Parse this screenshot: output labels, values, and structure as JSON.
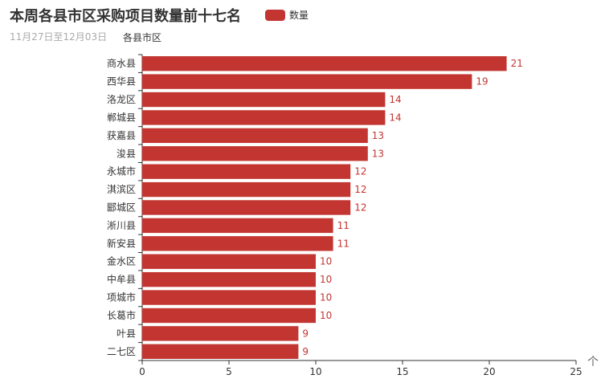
{
  "chart_data": {
    "type": "bar",
    "orientation": "horizontal",
    "title": "本周各县市区采购项目数量前十七名",
    "subtitle": "11月27日至12月03日",
    "ylabel": "各县市区",
    "xlabel": "",
    "legend": [
      "数量"
    ],
    "legend_position": "top",
    "color": "#c23531",
    "categories": [
      "二七区",
      "叶县",
      "长葛市",
      "项城市",
      "中牟县",
      "金水区",
      "新安县",
      "淅川县",
      "郾城区",
      "淇滨区",
      "永城市",
      "浚县",
      "获嘉县",
      "郸城县",
      "洛龙区",
      "西华县",
      "商水县"
    ],
    "series": [
      {
        "name": "数量",
        "values": [
          9,
          9,
          10,
          10,
          10,
          10,
          11,
          11,
          12,
          12,
          12,
          13,
          13,
          14,
          14,
          19,
          21
        ]
      }
    ],
    "xlim": [
      0,
      25
    ],
    "x_ticks": [
      "0",
      "5",
      "10",
      "15",
      "20",
      "25"
    ],
    "grid": false,
    "data_labels": true
  },
  "toolbox": {
    "icon": "arrow-up-icon",
    "glyph": "个"
  }
}
